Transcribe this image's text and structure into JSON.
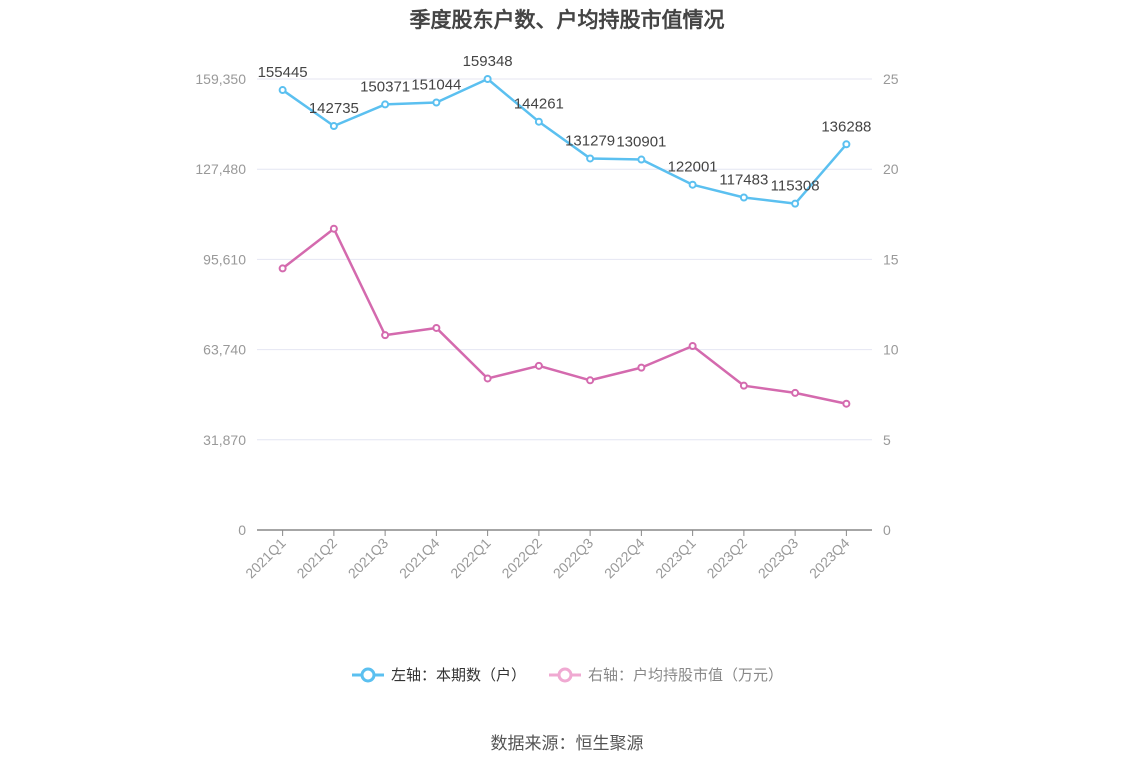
{
  "title": "季度股东户数、户均持股市值情况",
  "source": "数据来源：恒生聚源",
  "legend": {
    "left_label": "左轴：本期数（户）",
    "right_label": "右轴：户均持股市值（万元）"
  },
  "colors": {
    "left_series": "#5bc0f0",
    "right_series": "#d46aae",
    "right_legend": "#f0a9d2",
    "grid": "#e4e6f2",
    "axis": "#888888",
    "tick_text": "#999999",
    "label_text": "#444444"
  },
  "chart_data": {
    "type": "line",
    "title": "季度股东户数、户均持股市值情况",
    "categories": [
      "2021Q1",
      "2021Q2",
      "2021Q3",
      "2021Q4",
      "2022Q1",
      "2022Q2",
      "2022Q3",
      "2022Q4",
      "2023Q1",
      "2023Q2",
      "2023Q3",
      "2023Q4"
    ],
    "left_axis": {
      "ylim": [
        0,
        159350
      ],
      "ticks": [
        "0",
        "31,870",
        "63,740",
        "95,610",
        "127,480",
        "159,350"
      ]
    },
    "right_axis": {
      "ylim": [
        0,
        25
      ],
      "ticks": [
        "0",
        "5",
        "10",
        "15",
        "20",
        "25"
      ]
    },
    "series": [
      {
        "name": "左轴：本期数（户）",
        "axis": "left",
        "values": [
          155445,
          142735,
          150371,
          151044,
          159348,
          144261,
          131279,
          130901,
          122001,
          117483,
          115308,
          136288
        ],
        "labels": [
          "155445",
          "142735",
          "150371",
          "151044",
          "159348",
          "144261",
          "131279",
          "130901",
          "122001",
          "117483",
          "115308",
          "136288"
        ]
      },
      {
        "name": "右轴：户均持股市值（万元）",
        "axis": "right",
        "values": [
          14.5,
          16.7,
          10.8,
          11.2,
          8.4,
          9.1,
          8.3,
          9.0,
          10.2,
          8.0,
          7.6,
          7.0
        ]
      }
    ],
    "grid": true,
    "legend_position": "bottom"
  }
}
